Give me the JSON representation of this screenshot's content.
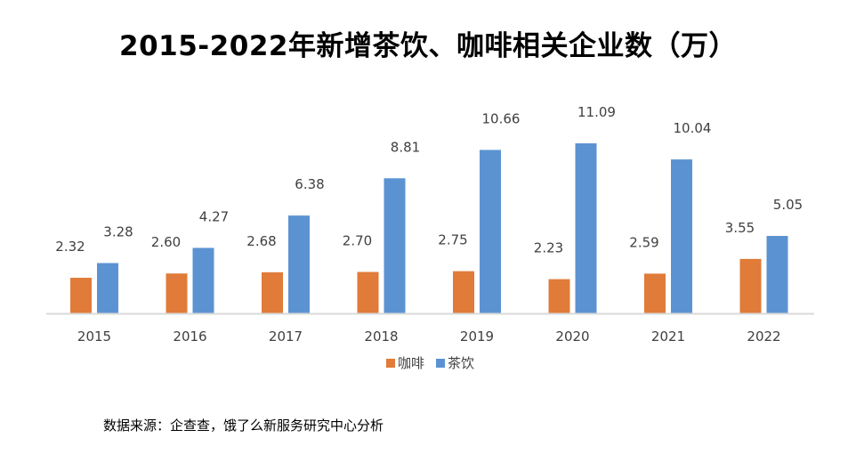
{
  "title": "2015-2022年新增茶饮、咖啡相关企业数（万）",
  "source": "数据来源：企查查，饿了么新服务研究中心分析",
  "colors": {
    "coffee": "#E07B39",
    "tea": "#5B93D2",
    "axis": "#D9D9D9"
  },
  "chart_data": {
    "type": "bar",
    "title": "2015-2022年新增茶饮、咖啡相关企业数（万）",
    "categories": [
      "2015",
      "2016",
      "2017",
      "2018",
      "2019",
      "2020",
      "2021",
      "2022"
    ],
    "series": [
      {
        "name": "咖啡",
        "values": [
          2.32,
          2.6,
          2.68,
          2.7,
          2.75,
          2.23,
          2.59,
          3.55
        ],
        "labels": [
          "2.32",
          "2.60",
          "2.68",
          "2.70",
          "2.75",
          "2.23",
          "2.59",
          "3.55"
        ]
      },
      {
        "name": "茶饮",
        "values": [
          3.28,
          4.27,
          6.38,
          8.81,
          10.66,
          11.09,
          10.04,
          5.05
        ],
        "labels": [
          "3.28",
          "4.27",
          "6.38",
          "8.81",
          "10.66",
          "11.09",
          "10.04",
          "5.05"
        ]
      }
    ],
    "ylim": [
      0,
      11.09
    ],
    "grid": false,
    "legend": "bottom"
  }
}
